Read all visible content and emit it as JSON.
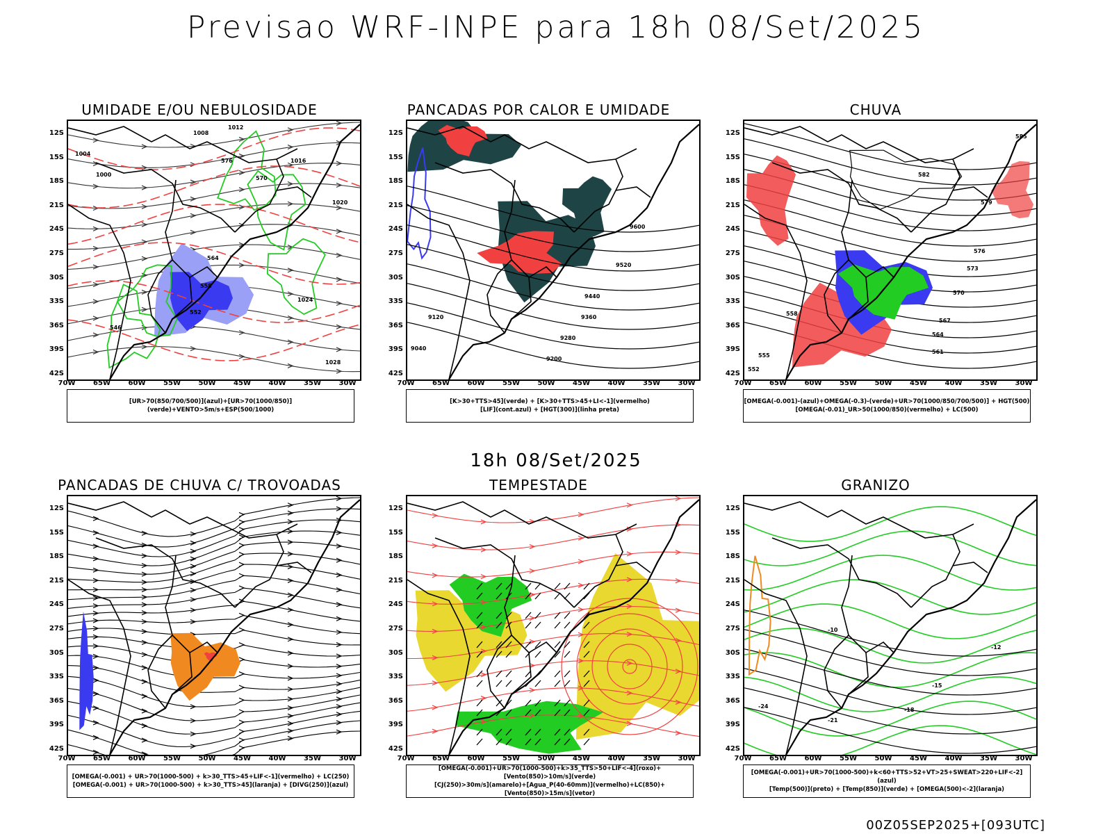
{
  "header": {
    "title": "Previsao WRF-INPE  para 18h 08/Set/2025",
    "mid_title": "18h 08/Set/2025",
    "run_info": "00Z05SEP2025+[093UTC]"
  },
  "axes": {
    "lat_labels": [
      "12S",
      "15S",
      "18S",
      "21S",
      "24S",
      "27S",
      "30S",
      "33S",
      "36S",
      "39S",
      "42S"
    ],
    "lon_labels": [
      "70W",
      "65W",
      "60W",
      "55W",
      "50W",
      "45W",
      "40W",
      "35W",
      "30W"
    ]
  },
  "panels": [
    {
      "id": "umidade",
      "title": "UMIDADE E/OU NEBULOSIDADE",
      "legend": [
        "[UR>70(850/700/500)](azul)+[UR>70(1000/850)](verde)+VENTO>5m/s+ESP(500/1000)"
      ],
      "contour_labels": [
        "1008",
        "1012",
        "1016",
        "1020",
        "1024",
        "1028",
        "1004",
        "1000",
        "576",
        "570",
        "564",
        "558",
        "552",
        "546"
      ]
    },
    {
      "id": "pancadas_calor",
      "title": "PANCADAS POR CALOR E UMIDADE",
      "legend": [
        "[K>30+TTS>45](verde) + [K>30+TTS>45+LI<-1](vermelho)",
        "[LIF](cont.azul) + [HGT(300)](linha preta)"
      ],
      "contour_labels": [
        "9600",
        "9520",
        "9440",
        "9360",
        "9280",
        "9200",
        "9120",
        "9040"
      ]
    },
    {
      "id": "chuva",
      "title": "CHUVA",
      "legend": [
        "[OMEGA(-0.001)-(azul)+OMEGA(-0.3)-(verde)+UR>70(1000/850/700/500)] + HGT(500)",
        "[OMEGA(-0.01)_UR>50(1000/850)(vermelho) + LC(500)"
      ],
      "contour_labels": [
        "585",
        "582",
        "579",
        "576",
        "573",
        "570",
        "567",
        "564",
        "561",
        "558",
        "555",
        "552"
      ]
    },
    {
      "id": "pancadas_trovoadas",
      "title": "PANCADAS DE CHUVA C/ TROVOADAS",
      "legend": [
        "[OMEGA(-0.001) + UR>70(1000-500) + k>30_TTS>45+LIF<-1](vermelho) + LC(250)",
        "[OMEGA(-0.001) + UR>70(1000-500) + k>30_TTS>45](laranja) + [DIVG(250)](azul)"
      ],
      "contour_labels": []
    },
    {
      "id": "tempestade",
      "title": "TEMPESTADE",
      "legend": [
        "[OMEGA(-0.001)+UR>70(1000-500)+k>35_TTS>50+LIF<-4](roxo)+[Vento(850)>10m/s](verde)",
        "[CJ(250)>30m/s](amarelo)+[Agua_P(40-60mm)](vermelho)+LC(850)+[Vento(850)>15m/s](vetor)"
      ],
      "contour_labels": []
    },
    {
      "id": "granizo",
      "title": "GRANIZO",
      "legend": [
        "[OMEGA(-0.001)+UR>70(1000-500)+k<60+TTS>52+VT>25+SWEAT>220+LIF<-2](azul)",
        "[Temp(500)](preto) + [Temp(850)](verde) + [OMEGA(500)<-2](laranja)"
      ],
      "contour_labels": [
        "-12",
        "-15",
        "-18",
        "-21",
        "-24",
        "-10"
      ]
    }
  ],
  "colors": {
    "blue": "#3a3af0",
    "light_blue": "#9aa0f5",
    "green": "#22cc22",
    "red": "#f04040",
    "orange": "#f08a20",
    "yellow": "#e8d830",
    "dark_teal": "#1e4446",
    "black": "#000000"
  }
}
